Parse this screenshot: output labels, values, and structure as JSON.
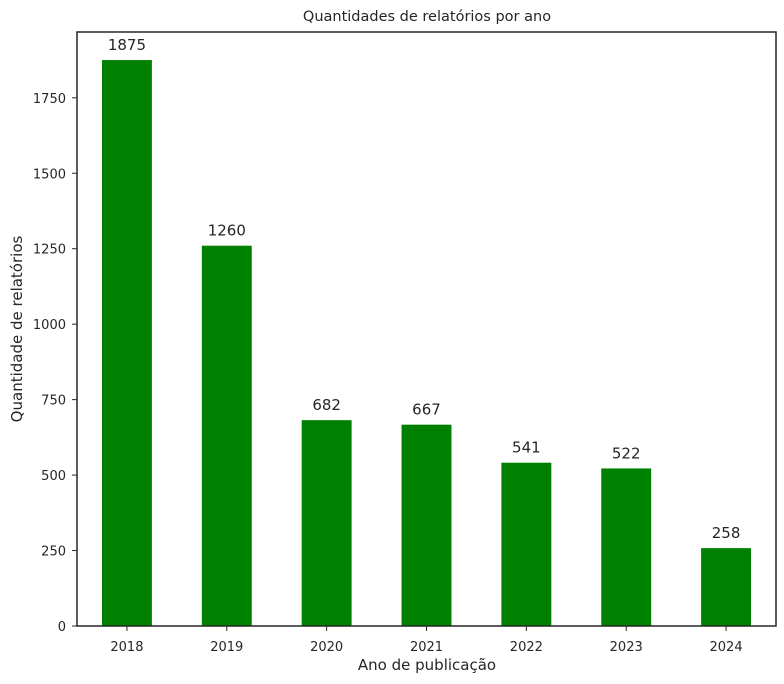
{
  "chart_data": {
    "type": "bar",
    "title": "Quantidades de relatórios por ano",
    "xlabel": "Ano de publicação",
    "ylabel": "Quantidade de relatórios",
    "categories": [
      "2018",
      "2019",
      "2020",
      "2021",
      "2022",
      "2023",
      "2024"
    ],
    "values": [
      1875,
      1260,
      682,
      667,
      541,
      522,
      258
    ],
    "data_labels": [
      "1875",
      "1260",
      "682",
      "667",
      "541",
      "522",
      "258"
    ],
    "ylim": [
      0,
      1968
    ],
    "yticks": [
      0,
      250,
      500,
      750,
      1000,
      1250,
      1500,
      1750
    ],
    "grid": false,
    "bar_color": "#008000",
    "axis_color": "#262626"
  }
}
